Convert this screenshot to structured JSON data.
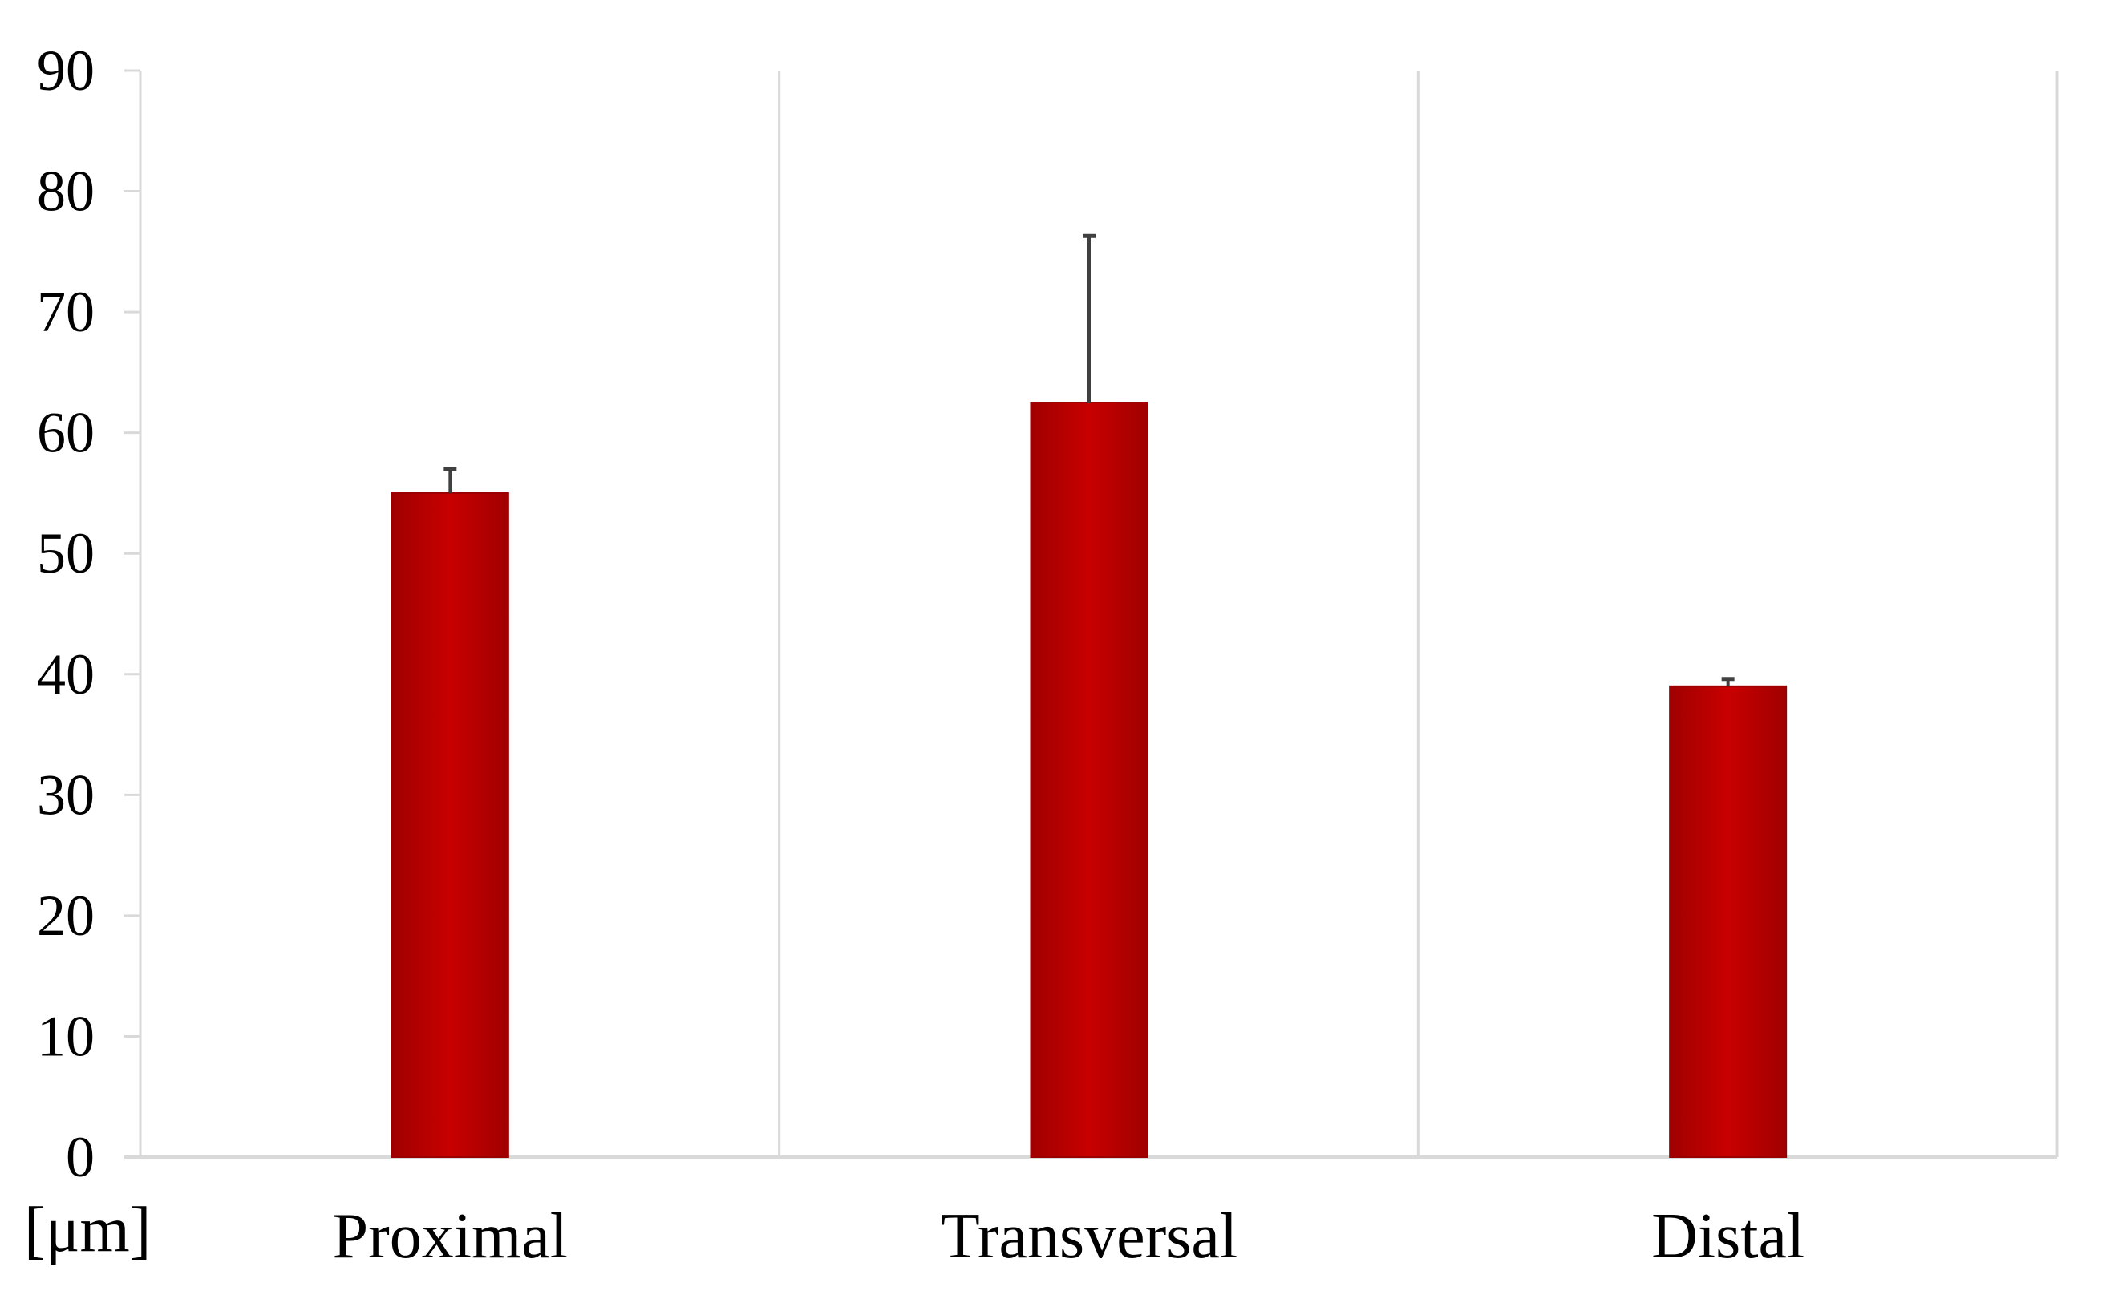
{
  "chart_data": {
    "type": "bar",
    "categories": [
      "Proximal",
      "Transversal",
      "Distal"
    ],
    "values": [
      55,
      62.5,
      39
    ],
    "error_bars_upper": [
      2,
      13.8,
      0.6
    ],
    "ylim": [
      0,
      90
    ],
    "yticks": [
      "0",
      "10",
      "20",
      "30",
      "40",
      "50",
      "60",
      "70",
      "80",
      "90"
    ],
    "ylabel": "[μm]",
    "grid": "vertical separators between categories",
    "legend": "none",
    "bar_color": "#c00000",
    "bar_edge_color": "#9a0000",
    "error_bar_color": "#404040",
    "axis_color": "#d9d9d9"
  }
}
